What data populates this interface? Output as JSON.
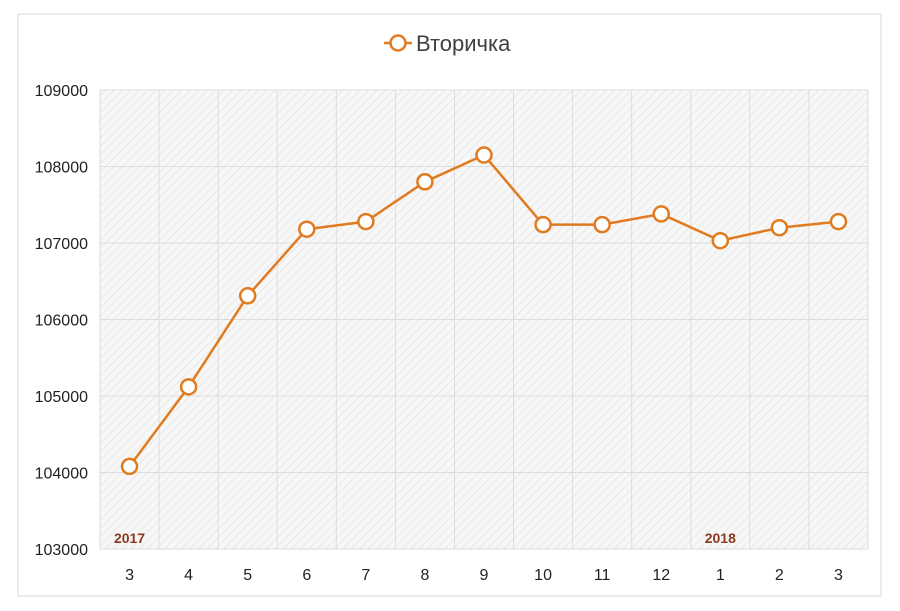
{
  "chart_data": {
    "type": "line",
    "legend_position": "top",
    "grid": true,
    "categories": [
      "3",
      "4",
      "5",
      "6",
      "7",
      "8",
      "9",
      "10",
      "11",
      "12",
      "1",
      "2",
      "3"
    ],
    "category_groups": [
      {
        "label": "2017",
        "start_index": 0
      },
      {
        "label": "2018",
        "start_index": 10
      }
    ],
    "series": [
      {
        "name": "Вторичка",
        "color": "#e07b1f",
        "values": [
          104080,
          105120,
          106310,
          107180,
          107280,
          107800,
          108150,
          107240,
          107240,
          107380,
          107030,
          107200,
          107280
        ]
      }
    ],
    "ylim": [
      103000,
      109000
    ],
    "yticks": [
      "103000",
      "104000",
      "105000",
      "106000",
      "107000",
      "108000",
      "109000"
    ],
    "colors": {
      "gridline": "#dcdcdc",
      "hatch": "#dddddd",
      "axis_text": "#222222",
      "year_label": "#8b3a1e"
    }
  }
}
